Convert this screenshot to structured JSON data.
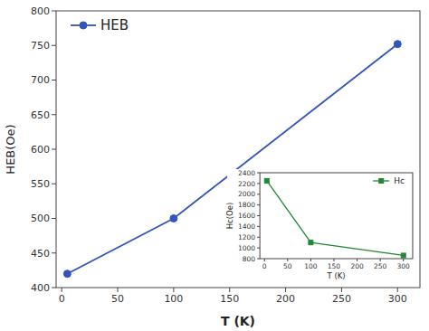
{
  "chart_data": [
    {
      "type": "line",
      "xlabel": "T (K)",
      "ylabel": "HEB(Oe)",
      "x": [
        5,
        100,
        300
      ],
      "series": [
        {
          "name": "HEB",
          "color": "#3355bb",
          "marker": "circle",
          "line_style": "solid",
          "values": [
            420,
            500,
            752
          ]
        }
      ],
      "xlim": [
        -5,
        320
      ],
      "ylim": [
        400,
        800
      ],
      "xticks": [
        0,
        50,
        100,
        150,
        200,
        250,
        300
      ],
      "yticks": [
        400,
        450,
        500,
        550,
        600,
        650,
        700,
        750,
        800
      ],
      "legend": "upper left",
      "grid": false
    },
    {
      "type": "line",
      "xlabel": "T (K)",
      "ylabel": "Hc(Oe)",
      "x": [
        5,
        100,
        300
      ],
      "series": [
        {
          "name": "Hc",
          "color": "#228833",
          "marker": "square",
          "line_style": "solid",
          "values": [
            2250,
            1100,
            860
          ]
        }
      ],
      "xlim": [
        -10,
        320
      ],
      "ylim": [
        800,
        2400
      ],
      "xticks": [
        0,
        50,
        100,
        150,
        200,
        250,
        300
      ],
      "yticks": [
        800,
        1000,
        1200,
        1400,
        1600,
        1800,
        2000,
        2200,
        2400
      ],
      "legend": "upper right",
      "grid": false
    }
  ]
}
